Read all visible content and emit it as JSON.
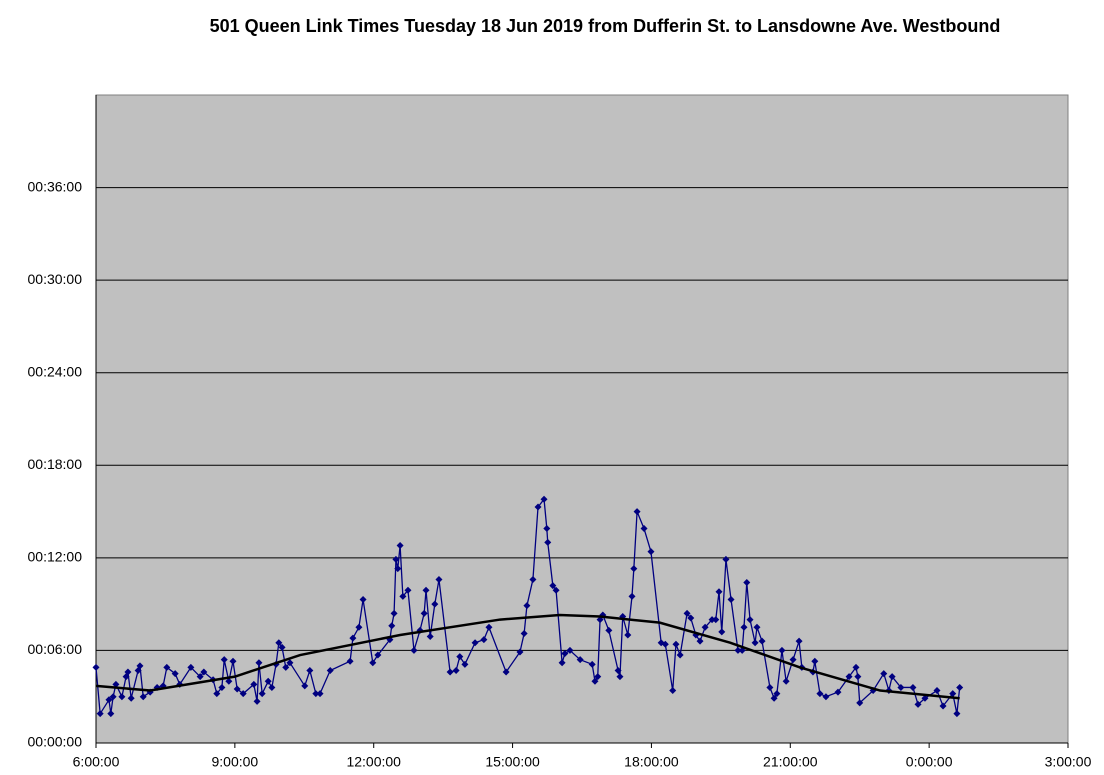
{
  "chart_data": {
    "type": "line",
    "title": "501 Queen Link Times Tuesday 18 Jun 2019 from Dufferin St. to Lansdowne Ave. Westbound",
    "xlim": [
      6,
      27
    ],
    "xticks": [
      {
        "value": 6,
        "label": "6:00:00"
      },
      {
        "value": 9,
        "label": "9:00:00"
      },
      {
        "value": 12,
        "label": "12:00:00"
      },
      {
        "value": 15,
        "label": "15:00:00"
      },
      {
        "value": 18,
        "label": "18:00:00"
      },
      {
        "value": 21,
        "label": "21:00:00"
      },
      {
        "value": 24,
        "label": "0:00:00"
      },
      {
        "value": 27,
        "label": "3:00:00"
      }
    ],
    "ylim": [
      0,
      42
    ],
    "yticks": [
      {
        "value": 0,
        "label": "00:00:00"
      },
      {
        "value": 6,
        "label": "00:06:00"
      },
      {
        "value": 12,
        "label": "00:12:00"
      },
      {
        "value": 18,
        "label": "00:18:00"
      },
      {
        "value": 24,
        "label": "00:24:00"
      },
      {
        "value": 30,
        "label": "00:30:00"
      },
      {
        "value": 36,
        "label": "00:36:00"
      }
    ],
    "grid": true,
    "series": [
      {
        "color": "#000080",
        "markers": true,
        "x": [
          6.0,
          6.09,
          6.28,
          6.32,
          6.37,
          6.43,
          6.56,
          6.65,
          6.69,
          6.76,
          6.91,
          6.95,
          7.02,
          7.17,
          7.32,
          7.45,
          7.53,
          7.71,
          7.81,
          8.05,
          8.25,
          8.33,
          8.53,
          8.61,
          8.72,
          8.77,
          8.87,
          8.96,
          9.05,
          9.18,
          9.41,
          9.48,
          9.52,
          9.59,
          9.72,
          9.8,
          9.89,
          9.95,
          10.02,
          10.1,
          10.19,
          10.51,
          10.62,
          10.75,
          10.84,
          11.06,
          11.49,
          11.55,
          11.68,
          11.77,
          11.98,
          12.09,
          12.35,
          12.39,
          12.44,
          12.48,
          12.52,
          12.57,
          12.63,
          12.74,
          12.87,
          13.0,
          13.09,
          13.13,
          13.22,
          13.32,
          13.41,
          13.65,
          13.78,
          13.86,
          13.97,
          14.19,
          14.38,
          14.49,
          14.86,
          15.16,
          15.25,
          15.31,
          15.44,
          15.55,
          15.68,
          15.74,
          15.76,
          15.87,
          15.94,
          16.07,
          16.13,
          16.24,
          16.46,
          16.72,
          16.78,
          16.84,
          16.89,
          16.95,
          17.08,
          17.28,
          17.32,
          17.38,
          17.49,
          17.58,
          17.62,
          17.69,
          17.84,
          17.99,
          18.21,
          18.3,
          18.46,
          18.53,
          18.62,
          18.77,
          18.85,
          18.96,
          19.05,
          19.16,
          19.31,
          19.39,
          19.46,
          19.52,
          19.61,
          19.72,
          19.87,
          19.96,
          20.0,
          20.06,
          20.13,
          20.24,
          20.28,
          20.39,
          20.56,
          20.65,
          20.71,
          20.82,
          20.91,
          21.06,
          21.19,
          21.25,
          21.49,
          21.53,
          21.64,
          21.77,
          22.03,
          22.27,
          22.42,
          22.46,
          22.5,
          22.79,
          23.02,
          23.13,
          23.2,
          23.39,
          23.65,
          23.76,
          23.91,
          24.17,
          24.3,
          24.51,
          24.6,
          24.66
        ],
        "values": [
          4.9,
          1.9,
          2.8,
          1.9,
          3.0,
          3.8,
          3.0,
          4.3,
          4.6,
          2.9,
          4.7,
          5.0,
          3.0,
          3.3,
          3.6,
          3.7,
          4.9,
          4.5,
          3.8,
          4.9,
          4.3,
          4.6,
          4.1,
          3.2,
          3.6,
          5.4,
          4.0,
          5.3,
          3.5,
          3.2,
          3.8,
          2.7,
          5.2,
          3.2,
          4.0,
          3.6,
          5.1,
          6.5,
          6.2,
          4.9,
          5.2,
          3.7,
          4.7,
          3.2,
          3.2,
          4.7,
          5.3,
          6.8,
          7.5,
          9.3,
          5.2,
          5.7,
          6.7,
          7.6,
          8.4,
          11.9,
          11.3,
          12.8,
          9.5,
          9.9,
          6.0,
          7.3,
          8.4,
          9.9,
          6.9,
          9.0,
          10.6,
          4.6,
          4.7,
          5.6,
          5.1,
          6.5,
          6.7,
          7.5,
          4.6,
          5.9,
          7.1,
          8.9,
          10.6,
          15.3,
          15.8,
          13.9,
          13.0,
          10.2,
          9.9,
          5.2,
          5.8,
          6.0,
          5.4,
          5.1,
          4.0,
          4.3,
          8.0,
          8.3,
          7.3,
          4.7,
          4.3,
          8.2,
          7.0,
          9.5,
          11.3,
          15.0,
          13.9,
          12.4,
          6.5,
          6.4,
          3.4,
          6.4,
          5.7,
          8.4,
          8.1,
          7.0,
          6.6,
          7.5,
          8.0,
          8.0,
          9.8,
          7.2,
          11.9,
          9.3,
          6.0,
          6.0,
          7.5,
          10.4,
          8.0,
          6.5,
          7.5,
          6.6,
          3.6,
          2.9,
          3.2,
          6.0,
          4.0,
          5.4,
          6.6,
          4.9,
          4.6,
          5.3,
          3.2,
          3.0,
          3.3,
          4.3,
          4.9,
          4.3,
          2.6,
          3.4,
          4.5,
          3.4,
          4.3,
          3.6,
          3.6,
          2.5,
          2.9,
          3.4,
          2.4,
          3.2,
          1.9,
          3.6
        ]
      },
      {
        "color": "#000000",
        "markers": false,
        "x": [
          6.0,
          7.17,
          9.0,
          10.41,
          12.57,
          14.73,
          16.02,
          16.89,
          18.18,
          19.7,
          21.21,
          22.94,
          24.66
        ],
        "values": [
          3.7,
          3.4,
          4.3,
          5.7,
          7.0,
          8.0,
          8.3,
          8.2,
          7.8,
          6.5,
          4.9,
          3.4,
          2.9
        ]
      }
    ]
  }
}
